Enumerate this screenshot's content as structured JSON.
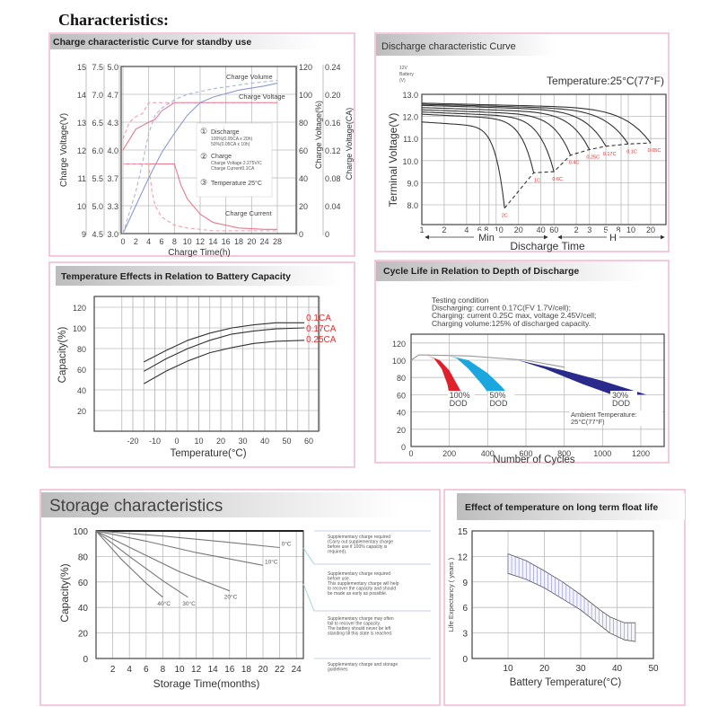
{
  "page_title": "Characteristics:",
  "chart_data": [
    {
      "type": "line",
      "title": "Charge characteristic Curve for standby use",
      "xlabel": "Charge Time(h)",
      "ylabel_left": "Charge Voltage(V)",
      "ylabel_right": "Charge Voltage(%)",
      "ylabel_right2": "Charge Voltage(CA)",
      "xticks": [
        "0",
        "2",
        "4",
        "6",
        "8",
        "10",
        "12",
        "14",
        "16",
        "18",
        "20",
        "24",
        "28"
      ],
      "xtick_values": [
        0,
        2,
        4,
        6,
        8,
        10,
        12,
        14,
        16,
        18,
        20,
        24,
        28
      ],
      "yticks_left_a": [
        "15",
        "14",
        "13",
        "12",
        "11",
        "10",
        "9"
      ],
      "yticks_left_b": [
        "7.5",
        "7.0",
        "6.5",
        "6.0",
        "5.5",
        "5.0",
        "4.5"
      ],
      "yticks_left_c": [
        "5.0",
        "4.7",
        "4.3",
        "4.0",
        "3.7",
        "3.3",
        "3.0"
      ],
      "yticks_right_a": [
        "120",
        "100",
        "80",
        "60",
        "40",
        "20",
        "0"
      ],
      "yticks_right_b": [
        "0.24",
        "0.20",
        "0.16",
        "0.12",
        "0.08",
        "0.04",
        "0"
      ],
      "ylim": [
        0,
        120
      ],
      "grid": true,
      "curve_labels": [
        "Charge Volume",
        "Charge Voltage",
        "Charge Current"
      ],
      "legend": {
        "markers": [
          "①",
          "②",
          "③"
        ],
        "discharge": "Discharge",
        "discharge_100": "100%(0.05CA x 20h)",
        "discharge_50": "50%(0.05CA x 10h)",
        "charge": "Charge",
        "charge_voltage": "Charge Voltage 2.275V/C",
        "charge_current": "Charge Current0.1CA",
        "temperature": "Temperature 25°C"
      },
      "series": [
        {
          "name": "Charge Voltage (100% discharge)",
          "style": "solid",
          "color": "#e57a8a",
          "points": [
            [
              0,
              60
            ],
            [
              2,
              75
            ],
            [
              4,
              80
            ],
            [
              5,
              82
            ],
            [
              6,
              88
            ],
            [
              8,
              94
            ],
            [
              28,
              94
            ]
          ]
        },
        {
          "name": "Charge Voltage (50% discharge)",
          "style": "dashed",
          "color": "#f0a0b0",
          "points": [
            [
              0,
              68
            ],
            [
              1,
              80
            ],
            [
              2,
              84
            ],
            [
              3,
              86
            ],
            [
              4,
              94
            ],
            [
              28,
              94
            ]
          ]
        },
        {
          "name": "Charge Volume (100% discharge)",
          "style": "solid",
          "color": "#8a9ad0",
          "points": [
            [
              0,
              0
            ],
            [
              2,
              20
            ],
            [
              4,
              40
            ],
            [
              6,
              58
            ],
            [
              8,
              72
            ],
            [
              10,
              85
            ],
            [
              12,
              94
            ],
            [
              14,
              98
            ],
            [
              18,
              103
            ],
            [
              24,
              106
            ],
            [
              28,
              108
            ]
          ]
        },
        {
          "name": "Charge Volume (50% discharge)",
          "style": "dashed",
          "color": "#a8b4dc",
          "points": [
            [
              0,
              0
            ],
            [
              2,
              30
            ],
            [
              3,
              50
            ],
            [
              4,
              72
            ],
            [
              5,
              85
            ],
            [
              6,
              90
            ],
            [
              8,
              96
            ],
            [
              10,
              100
            ],
            [
              14,
              104
            ],
            [
              20,
              108
            ],
            [
              28,
              110
            ]
          ]
        },
        {
          "name": "Charge Current (100% discharge)",
          "style": "solid",
          "color": "#e57a8a",
          "points": [
            [
              0,
              50
            ],
            [
              8,
              50
            ],
            [
              9,
              35
            ],
            [
              10,
              25
            ],
            [
              12,
              14
            ],
            [
              14,
              8
            ],
            [
              18,
              4
            ],
            [
              24,
              3
            ],
            [
              28,
              3
            ]
          ]
        },
        {
          "name": "Charge Current (50% discharge)",
          "style": "dashed",
          "color": "#f0a0b0",
          "points": [
            [
              0,
              50
            ],
            [
              4,
              50
            ],
            [
              4.5,
              30
            ],
            [
              5,
              20
            ],
            [
              6,
              12
            ],
            [
              8,
              6
            ],
            [
              10,
              4
            ],
            [
              14,
              2
            ],
            [
              28,
              2
            ]
          ]
        }
      ]
    },
    {
      "type": "line",
      "title": "Discharge characteristic Curve",
      "unit_note": [
        "12V",
        "Battery",
        "(V)"
      ],
      "temperature": "Temperature:25°C(77°F)",
      "ylabel": "Terminal Voltage(V)",
      "xlabel": "Discharge Time",
      "range_min": "Min",
      "range_h": "H",
      "yticks": [
        "13.0",
        "12.0",
        "11.0",
        "10.0",
        "9.0",
        "8.0"
      ],
      "ytick_values": [
        13,
        12,
        11,
        10,
        9,
        8
      ],
      "xticks": [
        "1",
        "2",
        "4",
        "6",
        "8",
        "10",
        "20",
        "40",
        "60",
        "2",
        "3",
        "5",
        "8",
        "10",
        "20"
      ],
      "xtick_minutes": [
        1,
        2,
        4,
        6,
        8,
        10,
        20,
        40,
        60,
        120,
        180,
        300,
        480,
        600,
        1200
      ],
      "xscale": "log",
      "ylim": [
        7.4,
        13
      ],
      "series": [
        {
          "name": "2C",
          "start_v": 11.75,
          "end_min": 13,
          "end_v": 7.85
        },
        {
          "name": "1C",
          "start_v": 12.1,
          "end_min": 32,
          "end_v": 9.45
        },
        {
          "name": "0.6C",
          "start_v": 12.2,
          "end_min": 60,
          "end_v": 9.5
        },
        {
          "name": "0.4C",
          "start_v": 12.3,
          "end_min": 100,
          "end_v": 10.25
        },
        {
          "name": "0.25C",
          "start_v": 12.4,
          "end_min": 180,
          "end_v": 10.5
        },
        {
          "name": "0.17C",
          "start_v": 12.5,
          "end_min": 300,
          "end_v": 10.65
        },
        {
          "name": "0.1C",
          "start_v": 12.55,
          "end_min": 600,
          "end_v": 10.75
        },
        {
          "name": "0.05C",
          "start_v": 12.6,
          "end_min": 1200,
          "end_v": 10.8
        }
      ]
    },
    {
      "type": "line",
      "title": "Temperature Effects in Relation to Battery Capacity",
      "xlabel": "Temperature(°C)",
      "ylabel": "Capacity(%)",
      "xticks": [
        "-20",
        "-10",
        "0",
        "10",
        "20",
        "30",
        "40",
        "50",
        "60"
      ],
      "xtick_values": [
        -20,
        -10,
        0,
        10,
        20,
        30,
        40,
        50,
        60
      ],
      "yticks": [
        "120",
        "100",
        "80",
        "60",
        "40",
        "20"
      ],
      "ytick_values": [
        120,
        100,
        80,
        60,
        40,
        20
      ],
      "series": [
        {
          "name": "0.1CA",
          "points": [
            [
              -15,
              67
            ],
            [
              -5,
              78
            ],
            [
              5,
              88
            ],
            [
              15,
              95
            ],
            [
              25,
              100
            ],
            [
              35,
              103
            ],
            [
              45,
              105
            ],
            [
              58,
              105
            ]
          ]
        },
        {
          "name": "0.17CA",
          "points": [
            [
              -15,
              58
            ],
            [
              -5,
              70
            ],
            [
              5,
              80
            ],
            [
              15,
              88
            ],
            [
              25,
              94
            ],
            [
              35,
              97
            ],
            [
              45,
              99
            ],
            [
              58,
              100
            ]
          ]
        },
        {
          "name": "0.25CA",
          "points": [
            [
              -15,
              46
            ],
            [
              -5,
              58
            ],
            [
              5,
              68
            ],
            [
              15,
              76
            ],
            [
              25,
              81
            ],
            [
              35,
              85
            ],
            [
              45,
              87
            ],
            [
              58,
              88
            ]
          ]
        }
      ]
    },
    {
      "type": "area",
      "title": "Cycle Life in Relation to Depth of Discharge",
      "conditions": [
        "Testing condition",
        "Discharging: current 0.17C(FV 1.7V/cell);",
        "Charging: current 0.25C max, voltage 2.45V/cell;",
        "Charging volume:125% of discharged capacity."
      ],
      "xlabel": "Number of Cycles",
      "ambient": [
        "Ambient Temperature:",
        "25°C(77°F)"
      ],
      "xticks": [
        "0",
        "200",
        "400",
        "600",
        "800",
        "1000",
        "1200"
      ],
      "xtick_values": [
        0,
        200,
        400,
        600,
        800,
        1000,
        1200
      ],
      "yticks": [
        "120",
        "100",
        "80",
        "60",
        "40",
        "20",
        "0"
      ],
      "ytick_values": [
        120,
        100,
        80,
        60,
        40,
        20,
        0
      ],
      "baseline": [
        [
          0,
          100
        ],
        [
          40,
          106
        ],
        [
          80,
          106
        ],
        [
          300,
          105
        ],
        [
          600,
          100
        ],
        [
          800,
          92
        ]
      ],
      "series": [
        {
          "name": "100%",
          "sub": "DOD",
          "color": "#e0202a",
          "polygon": [
            [
              80,
              106
            ],
            [
              150,
              100
            ],
            [
              200,
              88
            ],
            [
              240,
              72
            ],
            [
              270,
              60
            ],
            [
              200,
              60
            ],
            [
              190,
              72
            ],
            [
              160,
              90
            ],
            [
              120,
              102
            ]
          ]
        },
        {
          "name": "50%",
          "sub": "DOD",
          "color": "#1aa7e0",
          "polygon": [
            [
              200,
              105
            ],
            [
              300,
              100
            ],
            [
              400,
              85
            ],
            [
              470,
              70
            ],
            [
              510,
              60
            ],
            [
              410,
              60
            ],
            [
              370,
              72
            ],
            [
              300,
              90
            ],
            [
              240,
              102
            ]
          ]
        },
        {
          "name": "30%",
          "sub": "DOD",
          "color": "#2a2a8c",
          "polygon": [
            [
              560,
              100
            ],
            [
              800,
              88
            ],
            [
              1000,
              76
            ],
            [
              1230,
              60
            ],
            [
              1050,
              60
            ],
            [
              900,
              72
            ],
            [
              700,
              90
            ]
          ]
        }
      ]
    },
    {
      "type": "line",
      "title": "Storage characteristics",
      "xlabel": "Storage Time(months)",
      "ylabel": "Capacity(%)",
      "xticks": [
        "2",
        "4",
        "6",
        "8",
        "10",
        "12",
        "14",
        "16",
        "18",
        "20",
        "22",
        "24"
      ],
      "xtick_values": [
        2,
        4,
        6,
        8,
        10,
        12,
        14,
        16,
        18,
        20,
        22,
        24
      ],
      "yticks": [
        "100",
        "80",
        "60",
        "40",
        "20",
        "0"
      ],
      "ytick_values": [
        100,
        80,
        60,
        40,
        20,
        0
      ],
      "series": [
        {
          "name": "0°C",
          "points": [
            [
              0,
              100
            ],
            [
              8,
              96
            ],
            [
              16,
              91
            ],
            [
              22,
              87
            ]
          ]
        },
        {
          "name": "10°C",
          "points": [
            [
              0,
              100
            ],
            [
              6,
              92
            ],
            [
              12,
              83
            ],
            [
              20,
              73
            ]
          ]
        },
        {
          "name": "20°C",
          "points": [
            [
              0,
              100
            ],
            [
              5,
              84
            ],
            [
              10,
              68
            ],
            [
              16,
              53
            ]
          ]
        },
        {
          "name": "30°C",
          "points": [
            [
              0,
              100
            ],
            [
              4,
              80
            ],
            [
              8,
              61
            ],
            [
              11,
              48
            ]
          ]
        },
        {
          "name": "40°C",
          "points": [
            [
              0,
              100
            ],
            [
              3,
              78
            ],
            [
              6,
              59
            ],
            [
              8,
              48
            ]
          ]
        }
      ],
      "notes": [
        [
          "Supplementary charge required",
          "(Carry out supplementary charge",
          "before use if 100% capacity is",
          "required)."
        ],
        [
          "Supplementary charge required",
          "before use.",
          "This supplementary charge will help",
          "to recover the capacity and should",
          "be made as early as possible."
        ],
        [
          "Supplementary charge may often",
          "fail to recover the capacity.",
          "The battery should never be left",
          "standing till this state is reached."
        ],
        [
          "Supplementary charge and storage",
          "guidelines"
        ]
      ]
    },
    {
      "type": "area",
      "title": "Effect of temperature on long term float life",
      "xlabel": "Battery Temperature(°C)",
      "ylabel": "Life Expectancy ( years )",
      "xticks": [
        "10",
        "20",
        "30",
        "40",
        "50"
      ],
      "xtick_values": [
        10,
        20,
        30,
        40,
        50
      ],
      "yticks": [
        "15",
        "12",
        "9",
        "6",
        "3",
        "0"
      ],
      "ytick_values": [
        15,
        12,
        9,
        6,
        3,
        0
      ],
      "upper": [
        [
          10,
          12.3
        ],
        [
          15,
          11.5
        ],
        [
          20,
          10.3
        ],
        [
          25,
          9
        ],
        [
          30,
          7.5
        ],
        [
          35,
          5.8
        ],
        [
          38,
          4.9
        ],
        [
          42,
          4.2
        ],
        [
          45,
          4.2
        ]
      ],
      "lower": [
        [
          10,
          10
        ],
        [
          15,
          9.3
        ],
        [
          20,
          8.3
        ],
        [
          25,
          7
        ],
        [
          30,
          5.7
        ],
        [
          35,
          4
        ],
        [
          38,
          3
        ],
        [
          42,
          2.2
        ],
        [
          45,
          2
        ]
      ]
    }
  ]
}
